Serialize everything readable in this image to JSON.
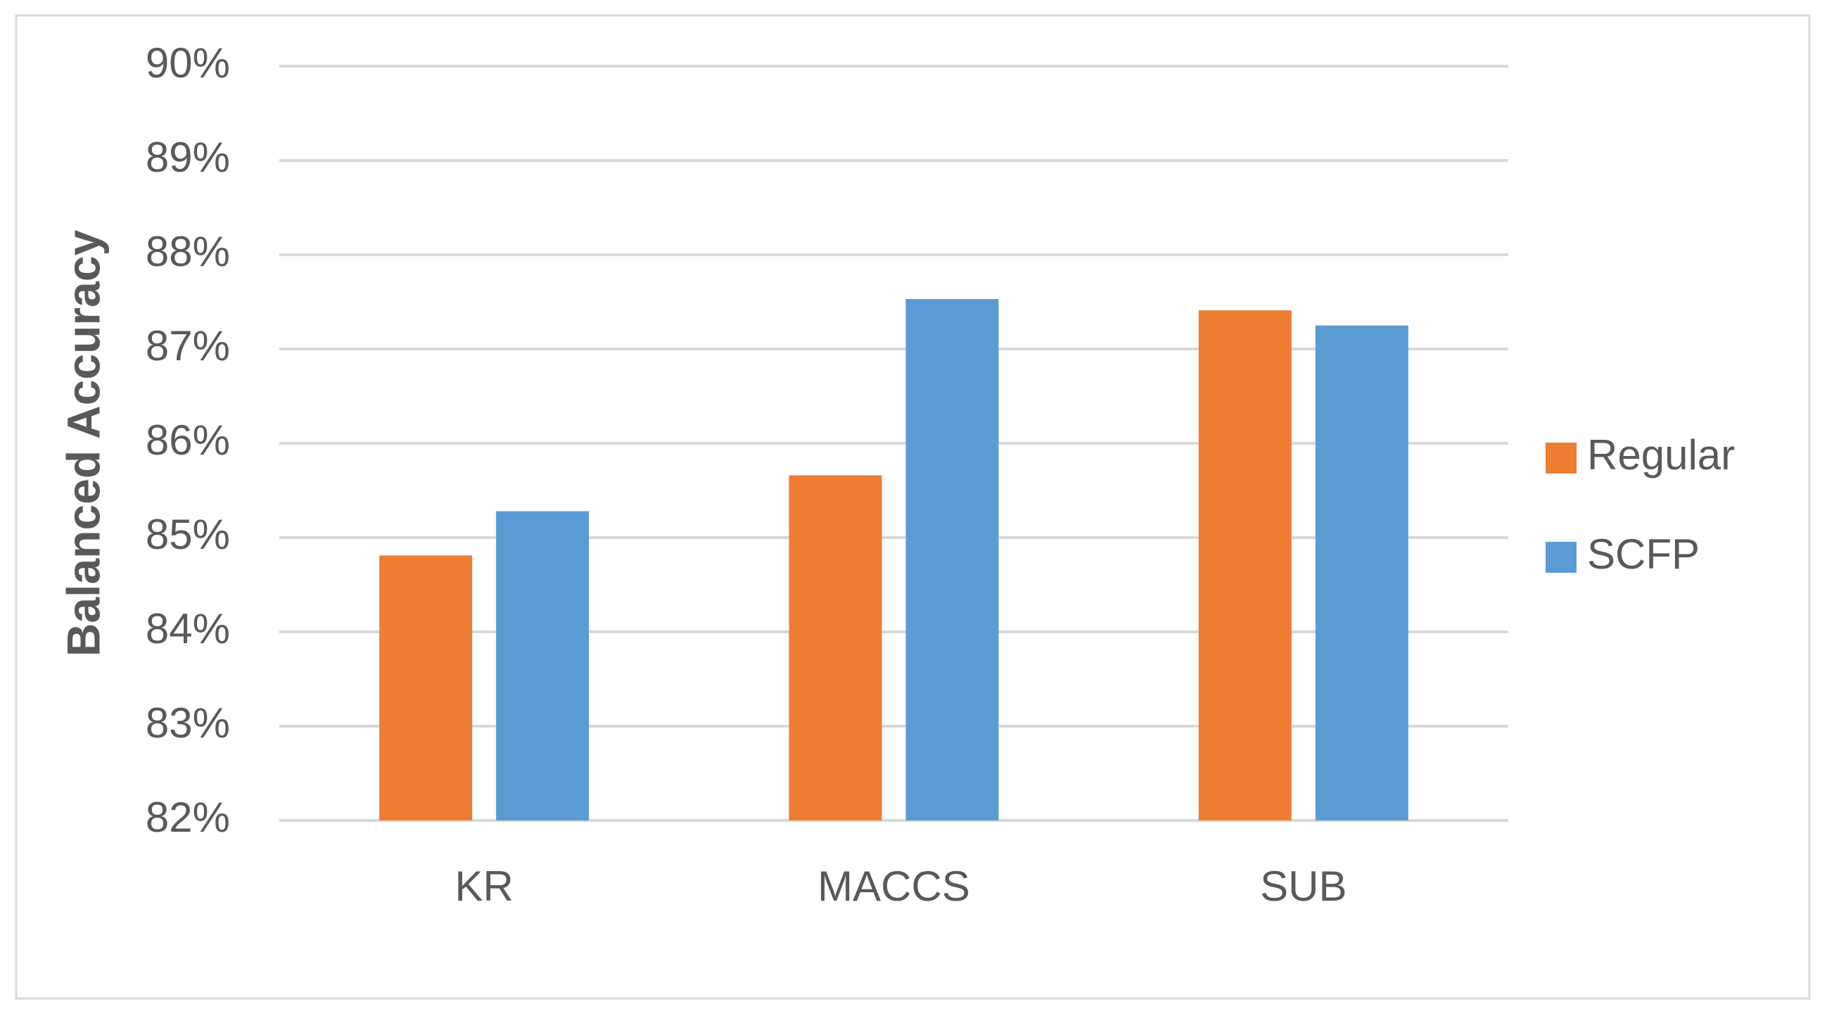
{
  "chart_data": {
    "type": "bar",
    "y_label": "Balanced Accuracy",
    "categories": [
      "KR",
      "MACCS",
      "SUB"
    ],
    "series": [
      {
        "name": "Regular",
        "color": "#ed7d31",
        "values": [
          84.81,
          85.66,
          87.41
        ]
      },
      {
        "name": "SCFP",
        "color": "#5b9bd5",
        "values": [
          85.28,
          87.53,
          87.25
        ]
      }
    ],
    "ylim": [
      82,
      90
    ],
    "yticks": [
      {
        "value": 82,
        "label": "82%"
      },
      {
        "value": 83,
        "label": "83%"
      },
      {
        "value": 84,
        "label": "84%"
      },
      {
        "value": 85,
        "label": "85%"
      },
      {
        "value": 86,
        "label": "86%"
      },
      {
        "value": 87,
        "label": "87%"
      },
      {
        "value": 88,
        "label": "88%"
      },
      {
        "value": 89,
        "label": "89%"
      },
      {
        "value": 90,
        "label": "90%"
      }
    ],
    "grid": true,
    "legend": "right"
  }
}
